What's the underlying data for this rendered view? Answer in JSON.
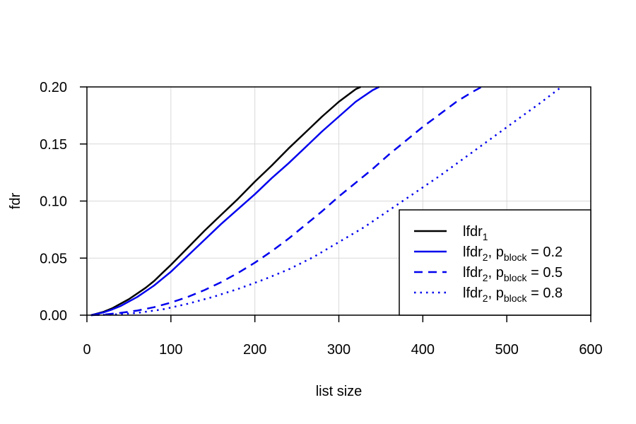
{
  "chart_data": {
    "type": "line",
    "title": "",
    "xlabel": "list size",
    "ylabel": "fdr",
    "xlim": [
      0,
      600
    ],
    "ylim": [
      0,
      0.2
    ],
    "grid": true,
    "x_ticks": [
      "0",
      "100",
      "200",
      "300",
      "400",
      "500",
      "600"
    ],
    "y_ticks": [
      "0.00",
      "0.05",
      "0.10",
      "0.15",
      "0.20"
    ],
    "legend_position": "bottom-right",
    "series": [
      {
        "name": "lfdr1",
        "legend": {
          "base": "lfdr",
          "sub": "1",
          "rest": ""
        },
        "color": "#000000",
        "dash": "solid",
        "x": [
          5,
          10,
          20,
          30,
          40,
          50,
          60,
          70,
          80,
          90,
          100,
          120,
          140,
          160,
          180,
          200,
          220,
          240,
          260,
          280,
          300,
          320,
          326
        ],
        "y": [
          0.0,
          0.001,
          0.003,
          0.006,
          0.01,
          0.014,
          0.019,
          0.024,
          0.03,
          0.037,
          0.044,
          0.059,
          0.074,
          0.088,
          0.102,
          0.117,
          0.131,
          0.146,
          0.16,
          0.174,
          0.187,
          0.198,
          0.2
        ]
      },
      {
        "name": "lfdr2, pblock = 0.2",
        "legend": {
          "base": "lfdr",
          "sub": "2",
          "rest": ", p",
          "sub2": "block",
          "tail": " = 0.2"
        },
        "color": "#0000ee",
        "dash": "solid",
        "x": [
          5,
          10,
          20,
          30,
          40,
          50,
          60,
          70,
          80,
          90,
          100,
          120,
          140,
          160,
          180,
          200,
          220,
          240,
          260,
          280,
          300,
          320,
          340,
          348
        ],
        "y": [
          0.0,
          0.0008,
          0.0025,
          0.005,
          0.008,
          0.012,
          0.016,
          0.021,
          0.026,
          0.032,
          0.038,
          0.052,
          0.066,
          0.08,
          0.093,
          0.106,
          0.12,
          0.133,
          0.147,
          0.161,
          0.174,
          0.187,
          0.197,
          0.2
        ]
      },
      {
        "name": "lfdr2, pblock = 0.5",
        "legend": {
          "base": "lfdr",
          "sub": "2",
          "rest": ", p",
          "sub2": "block",
          "tail": " = 0.5"
        },
        "color": "#0000ee",
        "dash": "dashed",
        "x": [
          5,
          20,
          40,
          60,
          80,
          100,
          120,
          140,
          160,
          180,
          200,
          220,
          240,
          260,
          280,
          300,
          320,
          340,
          360,
          380,
          400,
          420,
          440,
          460,
          470
        ],
        "y": [
          0.0,
          0.0005,
          0.002,
          0.004,
          0.007,
          0.011,
          0.016,
          0.022,
          0.029,
          0.037,
          0.046,
          0.056,
          0.067,
          0.079,
          0.091,
          0.104,
          0.116,
          0.128,
          0.141,
          0.153,
          0.165,
          0.176,
          0.187,
          0.196,
          0.2
        ]
      },
      {
        "name": "lfdr2, pblock = 0.8",
        "legend": {
          "base": "lfdr",
          "sub": "2",
          "rest": ", p",
          "sub2": "block",
          "tail": " = 0.8"
        },
        "color": "#0000ee",
        "dash": "dotted",
        "x": [
          5,
          30,
          60,
          90,
          120,
          150,
          180,
          210,
          240,
          270,
          300,
          330,
          360,
          390,
          420,
          450,
          480,
          510,
          540,
          565
        ],
        "y": [
          0.0,
          0.0005,
          0.002,
          0.005,
          0.01,
          0.016,
          0.023,
          0.031,
          0.04,
          0.051,
          0.064,
          0.077,
          0.092,
          0.107,
          0.122,
          0.138,
          0.154,
          0.17,
          0.186,
          0.2
        ]
      }
    ]
  }
}
